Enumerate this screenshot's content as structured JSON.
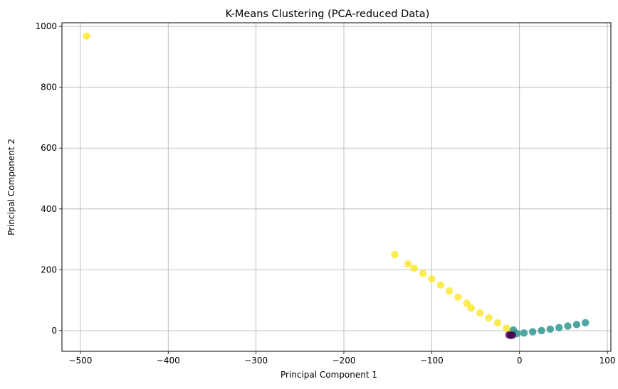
{
  "chart_data": {
    "type": "scatter",
    "title": "K-Means Clustering (PCA-reduced Data)",
    "xlabel": "Principal Component 1",
    "ylabel": "Principal Component 2",
    "xlim": [
      -521,
      104
    ],
    "ylim": [
      -68,
      1012
    ],
    "xticks": [
      -500,
      -400,
      -300,
      -200,
      -100,
      0,
      100
    ],
    "yticks": [
      0,
      200,
      400,
      600,
      800,
      1000
    ],
    "xtick_labels": [
      "−500",
      "−400",
      "−300",
      "−200",
      "−100",
      "0",
      "100"
    ],
    "ytick_labels": [
      "0",
      "200",
      "400",
      "600",
      "800",
      "1000"
    ],
    "grid": true,
    "series": [
      {
        "color": "#fde725",
        "points": [
          {
            "x": -493,
            "y": 968
          },
          {
            "x": -142,
            "y": 250
          },
          {
            "x": -127,
            "y": 219
          },
          {
            "x": -120,
            "y": 205
          },
          {
            "x": -110,
            "y": 188
          },
          {
            "x": -100,
            "y": 170
          },
          {
            "x": -90,
            "y": 150
          },
          {
            "x": -80,
            "y": 130
          },
          {
            "x": -70,
            "y": 110
          },
          {
            "x": -60,
            "y": 90
          },
          {
            "x": -55,
            "y": 74
          },
          {
            "x": -45,
            "y": 58
          },
          {
            "x": -35,
            "y": 42
          },
          {
            "x": -25,
            "y": 25
          },
          {
            "x": -15,
            "y": 8
          },
          {
            "x": -10,
            "y": -5
          }
        ]
      },
      {
        "color": "#21918c",
        "points": [
          {
            "x": -7,
            "y": 2
          },
          {
            "x": -3,
            "y": -10
          },
          {
            "x": 5,
            "y": -8
          },
          {
            "x": 15,
            "y": -4
          },
          {
            "x": 25,
            "y": 0
          },
          {
            "x": 35,
            "y": 5
          },
          {
            "x": 45,
            "y": 10
          },
          {
            "x": 55,
            "y": 15
          },
          {
            "x": 65,
            "y": 20
          },
          {
            "x": 75,
            "y": 26
          }
        ]
      },
      {
        "color": "#440154",
        "points": [
          {
            "x": -12,
            "y": -14
          },
          {
            "x": -10,
            "y": -16
          },
          {
            "x": -8,
            "y": -15
          }
        ]
      }
    ]
  }
}
